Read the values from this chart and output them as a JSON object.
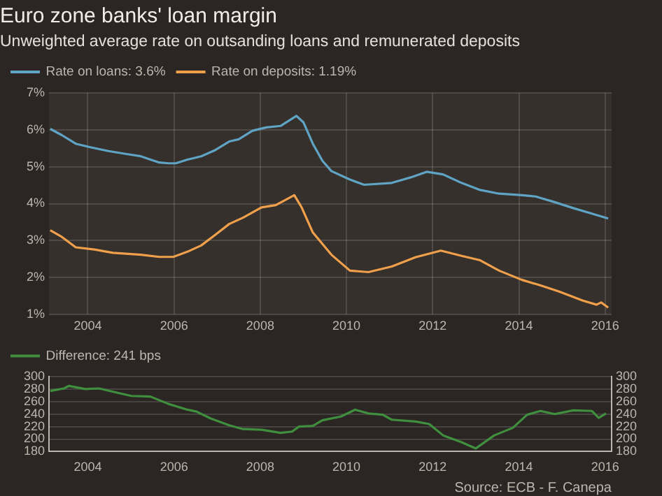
{
  "chart_data": [
    {
      "type": "line",
      "title": "Euro zone banks' loan margin",
      "subtitle": "Unweighted average rate on outsanding loans and remunerated deposits",
      "x": [
        2003.13,
        2003.4,
        2003.72,
        2004.04,
        2004.48,
        2004.9,
        2005.23,
        2005.66,
        2005.88,
        2006.04,
        2006.31,
        2006.63,
        2006.96,
        2007.28,
        2007.5,
        2007.82,
        2008.14,
        2008.47,
        2008.84,
        2009.0,
        2009.22,
        2009.44,
        2009.65,
        2010.08,
        2010.41,
        2011.05,
        2011.49,
        2011.86,
        2012.24,
        2012.67,
        2013.1,
        2013.54,
        2014.07,
        2014.4,
        2014.83,
        2015.26,
        2015.69,
        2016.07
      ],
      "series": [
        {
          "name": "Rate on loans: 3.6%",
          "color": "#5fa4c4",
          "values": [
            6.02,
            5.85,
            5.62,
            5.53,
            5.42,
            5.34,
            5.28,
            5.11,
            5.09,
            5.09,
            5.19,
            5.28,
            5.45,
            5.68,
            5.74,
            5.97,
            6.06,
            6.1,
            6.37,
            6.2,
            5.62,
            5.16,
            4.88,
            4.65,
            4.51,
            4.56,
            4.71,
            4.86,
            4.79,
            4.56,
            4.37,
            4.27,
            4.23,
            4.19,
            4.04,
            3.88,
            3.73,
            3.6
          ]
        },
        {
          "name": "Rate on deposits: 1.19%",
          "color": "#f0a04b",
          "x": [
            2003.13,
            2003.4,
            2003.72,
            2004.15,
            2004.58,
            2005.23,
            2005.66,
            2005.98,
            2006.31,
            2006.63,
            2006.96,
            2007.28,
            2007.6,
            2008.03,
            2008.36,
            2008.79,
            2008.96,
            2009.22,
            2009.65,
            2010.08,
            2010.51,
            2011.05,
            2011.6,
            2012.19,
            2012.67,
            2013.1,
            2013.54,
            2014.07,
            2014.5,
            2014.94,
            2015.48,
            2015.8,
            2015.91,
            2016.07
          ],
          "values": [
            3.28,
            3.1,
            2.82,
            2.76,
            2.67,
            2.62,
            2.56,
            2.56,
            2.7,
            2.87,
            3.16,
            3.45,
            3.62,
            3.9,
            3.96,
            4.23,
            3.9,
            3.22,
            2.62,
            2.19,
            2.15,
            2.3,
            2.55,
            2.73,
            2.59,
            2.47,
            2.19,
            1.94,
            1.79,
            1.62,
            1.38,
            1.27,
            1.33,
            1.19
          ]
        }
      ],
      "xlim": [
        2003.1,
        2016.15
      ],
      "xticks": [
        2004,
        2006,
        2008,
        2010,
        2012,
        2014,
        2016
      ],
      "ylim": [
        1,
        7
      ],
      "yticks": [
        {
          "value": 1,
          "label": "1%"
        },
        {
          "value": 2,
          "label": "2%"
        },
        {
          "value": 3,
          "label": "3%"
        },
        {
          "value": 4,
          "label": "4%"
        },
        {
          "value": 5,
          "label": "5%"
        },
        {
          "value": 6,
          "label": "6%"
        },
        {
          "value": 7,
          "label": "7%"
        }
      ],
      "grid": true,
      "legend": "top left",
      "marker": "none"
    },
    {
      "type": "line",
      "x": [
        2003.13,
        2003.45,
        2003.56,
        2003.94,
        2004.26,
        2004.69,
        2005.01,
        2005.45,
        2005.88,
        2006.31,
        2006.52,
        2006.85,
        2007.28,
        2007.6,
        2008.03,
        2008.47,
        2008.74,
        2008.9,
        2009.22,
        2009.44,
        2009.87,
        2010.2,
        2010.51,
        2010.84,
        2011.05,
        2011.6,
        2011.92,
        2012.24,
        2012.67,
        2013.0,
        2013.43,
        2013.86,
        2014.19,
        2014.5,
        2014.83,
        2015.26,
        2015.69,
        2015.85,
        2016.02
      ],
      "series": [
        {
          "name": "Difference: 241 bps",
          "color": "#3f8f3f",
          "values": [
            277,
            281,
            285,
            280,
            281,
            274,
            269,
            268,
            256,
            247,
            244,
            233,
            222,
            216,
            215,
            210,
            212,
            220,
            221,
            230,
            236,
            247,
            241,
            239,
            231,
            228,
            224,
            206,
            195,
            185,
            206,
            218,
            239,
            245,
            240,
            246,
            245,
            234,
            241
          ]
        }
      ],
      "xlim": [
        2003.1,
        2016.15
      ],
      "xticks": [
        2004,
        2006,
        2008,
        2010,
        2012,
        2014,
        2016
      ],
      "ylim": [
        180,
        300
      ],
      "yticks": [
        180,
        200,
        220,
        240,
        260,
        280,
        300
      ],
      "y2lim": [
        180,
        300
      ],
      "y2ticks": [
        180,
        200,
        220,
        240,
        260,
        280,
        300
      ],
      "grid": "y",
      "legend": "top left",
      "marker": "none",
      "annotations": [
        "Source: ECB - F. Canepa"
      ]
    }
  ]
}
